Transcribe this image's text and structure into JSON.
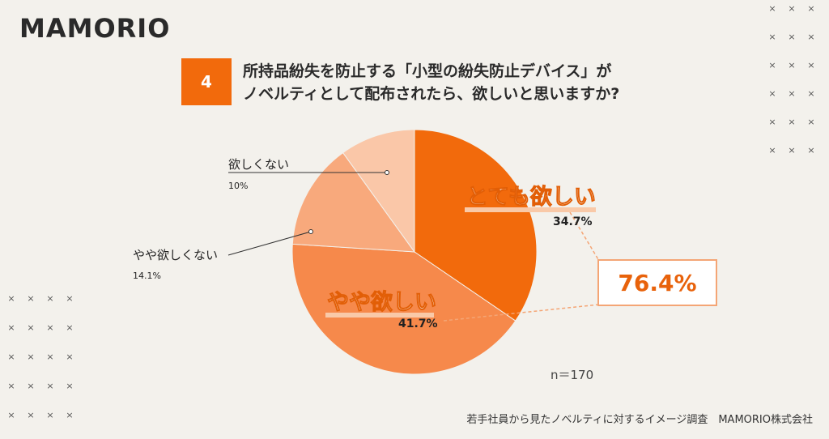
{
  "logo": "MAMORIO",
  "question": {
    "number": "4",
    "line1": "所持品紛失を防止する「小型の紛失防止デバイス」が",
    "line2": "ノベルティとして配布されたら、欲しいと思いますか?"
  },
  "chart_data": {
    "type": "pie",
    "slices": [
      {
        "label": "とても欲しい",
        "value": 34.7,
        "value_label": "34.7%",
        "color": "#f26a0c"
      },
      {
        "label": "やや欲しい",
        "value": 41.7,
        "value_label": "41.7%",
        "color": "#f6894b"
      },
      {
        "label": "やや欲しくない",
        "value": 14.1,
        "value_label": "14.1%",
        "color": "#f8a97c"
      },
      {
        "label": "欲しくない",
        "value": 10,
        "value_label": "10%",
        "color": "#fac7a8"
      }
    ],
    "highlight_total": "76.4%",
    "sample_note": "n＝170"
  },
  "footer": "若手社員から見たノベルティに対するイメージ調査　MAMORIO株式会社"
}
